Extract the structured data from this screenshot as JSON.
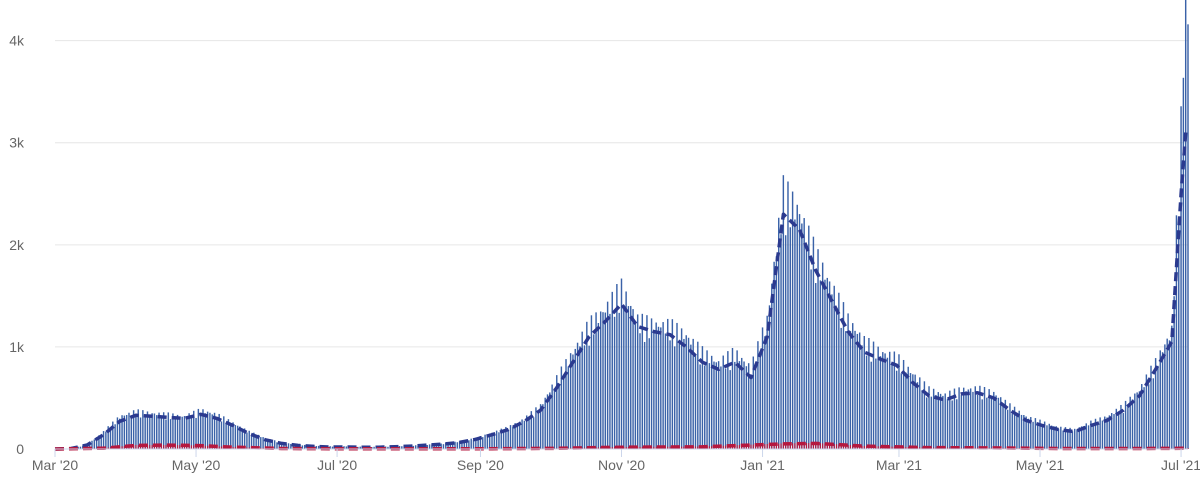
{
  "chart_data": {
    "type": "bar",
    "title": "",
    "xlabel": "",
    "ylabel": "",
    "start_date": "2020-03-01",
    "end_date": "2021-07-04",
    "ylim": [
      0,
      4300
    ],
    "y_ticks": [
      {
        "value": 0,
        "label": "0"
      },
      {
        "value": 1000,
        "label": "1k"
      },
      {
        "value": 2000,
        "label": "2k"
      },
      {
        "value": 3000,
        "label": "3k"
      },
      {
        "value": 4000,
        "label": "4k"
      }
    ],
    "x_ticks": [
      {
        "date": "2020-03-01",
        "label": "Mar '20"
      },
      {
        "date": "2020-05-01",
        "label": "May '20"
      },
      {
        "date": "2020-07-01",
        "label": "Jul '20"
      },
      {
        "date": "2020-09-01",
        "label": "Sep '20"
      },
      {
        "date": "2020-11-01",
        "label": "Nov '20"
      },
      {
        "date": "2021-01-01",
        "label": "Jan '21"
      },
      {
        "date": "2021-03-01",
        "label": "Mar '21"
      },
      {
        "date": "2021-05-01",
        "label": "May '21"
      },
      {
        "date": "2021-07-01",
        "label": "Jul '21"
      }
    ],
    "grid": true,
    "legend": "none",
    "series": [
      {
        "name": "",
        "kind": "daily-bars",
        "color": "#3a62a8",
        "points": [
          [
            "2020-03-01",
            0
          ],
          [
            "2020-03-08",
            5
          ],
          [
            "2020-03-15",
            40
          ],
          [
            "2020-03-22",
            160
          ],
          [
            "2020-03-29",
            300
          ],
          [
            "2020-04-05",
            350
          ],
          [
            "2020-04-12",
            330
          ],
          [
            "2020-04-19",
            320
          ],
          [
            "2020-04-26",
            300
          ],
          [
            "2020-05-03",
            360
          ],
          [
            "2020-05-10",
            320
          ],
          [
            "2020-05-17",
            240
          ],
          [
            "2020-05-24",
            160
          ],
          [
            "2020-05-31",
            100
          ],
          [
            "2020-06-07",
            60
          ],
          [
            "2020-06-14",
            40
          ],
          [
            "2020-06-21",
            30
          ],
          [
            "2020-06-28",
            25
          ],
          [
            "2020-07-05",
            25
          ],
          [
            "2020-07-12",
            20
          ],
          [
            "2020-07-19",
            20
          ],
          [
            "2020-07-26",
            25
          ],
          [
            "2020-08-02",
            30
          ],
          [
            "2020-08-09",
            40
          ],
          [
            "2020-08-16",
            50
          ],
          [
            "2020-08-23",
            70
          ],
          [
            "2020-08-30",
            100
          ],
          [
            "2020-09-06",
            150
          ],
          [
            "2020-09-13",
            200
          ],
          [
            "2020-09-20",
            280
          ],
          [
            "2020-09-27",
            400
          ],
          [
            "2020-10-04",
            650
          ],
          [
            "2020-10-11",
            900
          ],
          [
            "2020-10-18",
            1150
          ],
          [
            "2020-10-25",
            1300
          ],
          [
            "2020-11-01",
            1500
          ],
          [
            "2020-11-08",
            1200
          ],
          [
            "2020-11-15",
            1150
          ],
          [
            "2020-11-22",
            1150
          ],
          [
            "2020-11-29",
            1050
          ],
          [
            "2020-12-06",
            900
          ],
          [
            "2020-12-13",
            800
          ],
          [
            "2020-12-20",
            900
          ],
          [
            "2020-12-27",
            750
          ],
          [
            "2021-01-03",
            1200
          ],
          [
            "2021-01-10",
            2400
          ],
          [
            "2021-01-17",
            2200
          ],
          [
            "2021-01-24",
            1800
          ],
          [
            "2021-01-31",
            1500
          ],
          [
            "2021-02-07",
            1200
          ],
          [
            "2021-02-14",
            1000
          ],
          [
            "2021-02-21",
            900
          ],
          [
            "2021-02-28",
            850
          ],
          [
            "2021-03-07",
            700
          ],
          [
            "2021-03-14",
            550
          ],
          [
            "2021-03-21",
            500
          ],
          [
            "2021-03-28",
            550
          ],
          [
            "2021-04-04",
            560
          ],
          [
            "2021-04-11",
            520
          ],
          [
            "2021-04-18",
            400
          ],
          [
            "2021-04-25",
            300
          ],
          [
            "2021-05-02",
            250
          ],
          [
            "2021-05-09",
            200
          ],
          [
            "2021-05-16",
            180
          ],
          [
            "2021-05-23",
            250
          ],
          [
            "2021-05-30",
            300
          ],
          [
            "2021-06-06",
            400
          ],
          [
            "2021-06-13",
            550
          ],
          [
            "2021-06-20",
            800
          ],
          [
            "2021-06-27",
            1100
          ],
          [
            "2021-07-01",
            3000
          ],
          [
            "2021-07-02",
            3900
          ],
          [
            "2021-07-03",
            4200
          ]
        ]
      },
      {
        "name": "",
        "kind": "average-line",
        "color": "#2b3a8f",
        "points": [
          [
            "2020-03-01",
            0
          ],
          [
            "2020-03-08",
            5
          ],
          [
            "2020-03-15",
            40
          ],
          [
            "2020-03-22",
            140
          ],
          [
            "2020-03-29",
            270
          ],
          [
            "2020-04-05",
            330
          ],
          [
            "2020-04-12",
            320
          ],
          [
            "2020-04-19",
            310
          ],
          [
            "2020-04-26",
            300
          ],
          [
            "2020-05-03",
            340
          ],
          [
            "2020-05-10",
            300
          ],
          [
            "2020-05-17",
            230
          ],
          [
            "2020-05-24",
            150
          ],
          [
            "2020-05-31",
            90
          ],
          [
            "2020-06-07",
            55
          ],
          [
            "2020-06-14",
            35
          ],
          [
            "2020-06-21",
            25
          ],
          [
            "2020-06-28",
            20
          ],
          [
            "2020-07-05",
            20
          ],
          [
            "2020-07-12",
            18
          ],
          [
            "2020-07-19",
            18
          ],
          [
            "2020-07-26",
            22
          ],
          [
            "2020-08-02",
            28
          ],
          [
            "2020-08-09",
            38
          ],
          [
            "2020-08-16",
            48
          ],
          [
            "2020-08-23",
            65
          ],
          [
            "2020-08-30",
            95
          ],
          [
            "2020-09-06",
            140
          ],
          [
            "2020-09-13",
            190
          ],
          [
            "2020-09-20",
            270
          ],
          [
            "2020-09-27",
            380
          ],
          [
            "2020-10-04",
            600
          ],
          [
            "2020-10-11",
            850
          ],
          [
            "2020-10-18",
            1100
          ],
          [
            "2020-10-25",
            1250
          ],
          [
            "2020-11-01",
            1420
          ],
          [
            "2020-11-08",
            1200
          ],
          [
            "2020-11-15",
            1150
          ],
          [
            "2020-11-22",
            1120
          ],
          [
            "2020-11-29",
            1000
          ],
          [
            "2020-12-06",
            850
          ],
          [
            "2020-12-13",
            780
          ],
          [
            "2020-12-20",
            850
          ],
          [
            "2020-12-27",
            700
          ],
          [
            "2021-01-03",
            1100
          ],
          [
            "2021-01-10",
            2300
          ],
          [
            "2021-01-17",
            2150
          ],
          [
            "2021-01-24",
            1750
          ],
          [
            "2021-01-31",
            1450
          ],
          [
            "2021-02-07",
            1150
          ],
          [
            "2021-02-14",
            950
          ],
          [
            "2021-02-21",
            880
          ],
          [
            "2021-02-28",
            820
          ],
          [
            "2021-03-07",
            650
          ],
          [
            "2021-03-14",
            520
          ],
          [
            "2021-03-21",
            480
          ],
          [
            "2021-03-28",
            540
          ],
          [
            "2021-04-04",
            550
          ],
          [
            "2021-04-11",
            500
          ],
          [
            "2021-04-18",
            380
          ],
          [
            "2021-04-25",
            280
          ],
          [
            "2021-05-02",
            230
          ],
          [
            "2021-05-09",
            190
          ],
          [
            "2021-05-16",
            170
          ],
          [
            "2021-05-23",
            230
          ],
          [
            "2021-05-30",
            280
          ],
          [
            "2021-06-06",
            380
          ],
          [
            "2021-06-13",
            520
          ],
          [
            "2021-06-20",
            780
          ],
          [
            "2021-06-27",
            1050
          ],
          [
            "2021-07-01",
            2500
          ],
          [
            "2021-07-03",
            3100
          ]
        ]
      },
      {
        "name": "",
        "kind": "daily-bars",
        "color": "#b5183f",
        "points": [
          [
            "2020-03-01",
            0
          ],
          [
            "2020-03-22",
            10
          ],
          [
            "2020-04-05",
            40
          ],
          [
            "2020-04-19",
            40
          ],
          [
            "2020-05-03",
            35
          ],
          [
            "2020-05-17",
            20
          ],
          [
            "2020-06-07",
            5
          ],
          [
            "2020-07-05",
            2
          ],
          [
            "2020-09-06",
            3
          ],
          [
            "2020-10-04",
            8
          ],
          [
            "2020-11-01",
            20
          ],
          [
            "2020-12-06",
            25
          ],
          [
            "2021-01-10",
            55
          ],
          [
            "2021-01-24",
            60
          ],
          [
            "2021-02-14",
            30
          ],
          [
            "2021-03-14",
            15
          ],
          [
            "2021-04-11",
            12
          ],
          [
            "2021-05-09",
            5
          ],
          [
            "2021-06-13",
            5
          ],
          [
            "2021-07-03",
            8
          ]
        ]
      },
      {
        "name": "",
        "kind": "average-line",
        "color": "#b5183f",
        "points": [
          [
            "2020-03-01",
            0
          ],
          [
            "2020-03-22",
            8
          ],
          [
            "2020-04-05",
            35
          ],
          [
            "2020-04-19",
            38
          ],
          [
            "2020-05-03",
            33
          ],
          [
            "2020-05-17",
            18
          ],
          [
            "2020-06-07",
            5
          ],
          [
            "2020-07-05",
            2
          ],
          [
            "2020-09-06",
            3
          ],
          [
            "2020-10-04",
            7
          ],
          [
            "2020-11-01",
            18
          ],
          [
            "2020-12-06",
            22
          ],
          [
            "2021-01-10",
            50
          ],
          [
            "2021-01-24",
            55
          ],
          [
            "2021-02-14",
            28
          ],
          [
            "2021-03-14",
            14
          ],
          [
            "2021-04-11",
            11
          ],
          [
            "2021-05-09",
            5
          ],
          [
            "2021-06-13",
            5
          ],
          [
            "2021-07-03",
            7
          ]
        ]
      }
    ]
  }
}
